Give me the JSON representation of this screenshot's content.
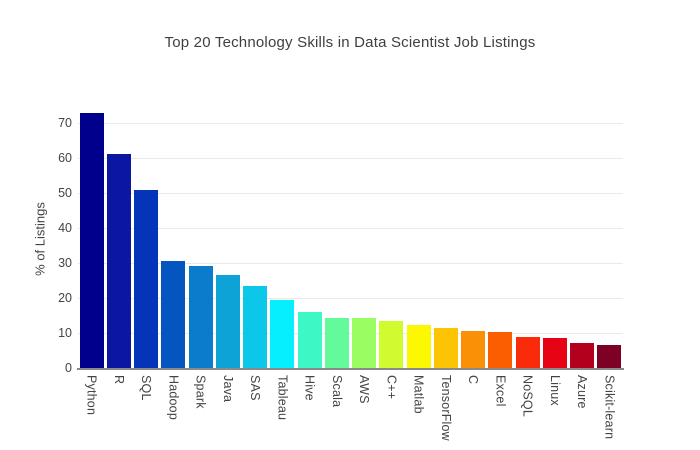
{
  "title": "Top 20 Technology Skills in Data Scientist Job Listings",
  "chart_data": {
    "type": "bar",
    "title": "Top 20 Technology Skills in Data Scientist Job Listings",
    "xlabel": "",
    "ylabel": "% of Listings",
    "ylim": [
      0,
      76.6
    ],
    "yticks": [
      0,
      10,
      20,
      30,
      40,
      50,
      60,
      70
    ],
    "grid": true,
    "legend": false,
    "categories": [
      "Python",
      "R",
      "SQL",
      "Hadoop",
      "Spark",
      "Java",
      "SAS",
      "Tableau",
      "Hive",
      "Scala",
      "AWS",
      "C++",
      "Matlab",
      "TensorFlow",
      "C",
      "Excel",
      "NoSQL",
      "Linux",
      "Azure",
      "Scikit-learn"
    ],
    "values": [
      72.9,
      61.2,
      50.9,
      30.5,
      29.1,
      26.5,
      23.5,
      19.4,
      15.9,
      14.3,
      14.2,
      13.4,
      12.4,
      11.5,
      10.7,
      10.4,
      8.8,
      8.6,
      7.2,
      6.6
    ],
    "bar_colors": [
      "#00008C",
      "#0B17A3",
      "#0435B8",
      "#0555C1",
      "#0B7CCB",
      "#0EA3D6",
      "#0BC8E8",
      "#06EFFE",
      "#3DF8C5",
      "#63FA9B",
      "#9AFD61",
      "#D0FB2E",
      "#FCF802",
      "#FCC403",
      "#FA9005",
      "#FB5D01",
      "#F92B0A",
      "#E60313",
      "#B3001D",
      "#7D0025"
    ]
  },
  "colors": {
    "background": "#ffffff",
    "title_text": "#3d3f42",
    "tick_text": "#444444",
    "gridline": "#e9e9e9",
    "axis_line": "#8a8a8a"
  }
}
